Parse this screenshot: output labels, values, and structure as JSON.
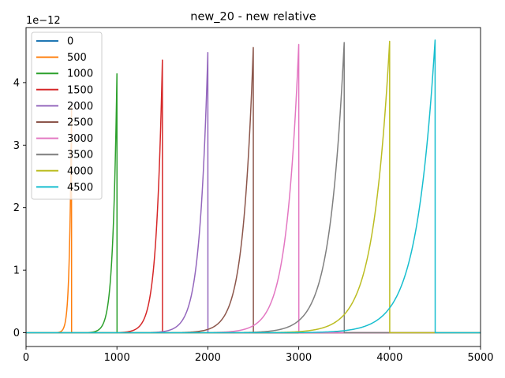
{
  "chart_data": {
    "type": "line",
    "title": "new_20 - new relative",
    "xlabel": "",
    "ylabel": "",
    "xlim": [
      0,
      5000
    ],
    "ylim": [
      -0.22,
      4.88
    ],
    "y_multiplier_label": "1e−12",
    "x_ticks": [
      0,
      1000,
      2000,
      3000,
      4000,
      5000
    ],
    "x_tick_labels": [
      "0",
      "1000",
      "2000",
      "3000",
      "4000",
      "5000"
    ],
    "y_ticks": [
      0,
      1,
      2,
      3,
      4
    ],
    "y_tick_labels": [
      "0",
      "1",
      "2",
      "3",
      "4"
    ],
    "grid": false,
    "legend_position": "upper-left",
    "series": [
      {
        "name": "0",
        "color": "#1f77b4",
        "onset": 0,
        "peak": 0
      },
      {
        "name": "500",
        "color": "#ff7f0e",
        "onset": 500,
        "peak": 3.6
      },
      {
        "name": "1000",
        "color": "#2ca02c",
        "onset": 1000,
        "peak": 4.14
      },
      {
        "name": "1500",
        "color": "#d62728",
        "onset": 1500,
        "peak": 4.36
      },
      {
        "name": "2000",
        "color": "#9467bd",
        "onset": 2000,
        "peak": 4.48
      },
      {
        "name": "2500",
        "color": "#8c564b",
        "onset": 2500,
        "peak": 4.56
      },
      {
        "name": "3000",
        "color": "#e377c2",
        "onset": 3000,
        "peak": 4.61
      },
      {
        "name": "3500",
        "color": "#7f7f7f",
        "onset": 3500,
        "peak": 4.64
      },
      {
        "name": "4000",
        "color": "#bcbd22",
        "onset": 4000,
        "peak": 4.66
      },
      {
        "name": "4500",
        "color": "#17becf",
        "onset": 4500,
        "peak": 4.68
      }
    ]
  }
}
